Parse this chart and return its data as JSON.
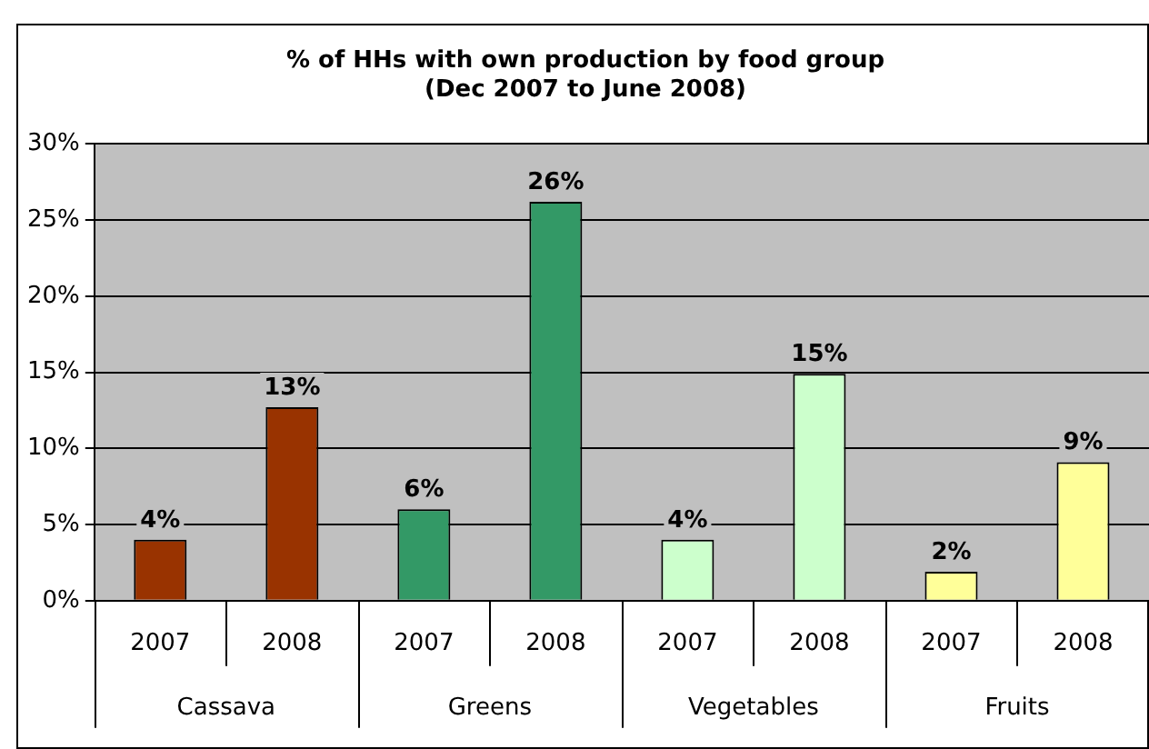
{
  "chart_data": {
    "type": "bar",
    "title": "% of HHs with own production by food group\n(Dec 2007 to June 2008)",
    "categories": [
      "2007",
      "2008",
      "2007",
      "2008",
      "2007",
      "2008",
      "2007",
      "2008"
    ],
    "values": [
      4.0,
      12.7,
      6.0,
      26.2,
      4.0,
      14.9,
      1.9,
      9.1
    ],
    "colors": [
      "#993300",
      "#993300",
      "#339966",
      "#339966",
      "#ccffcc",
      "#ccffcc",
      "#ffff99",
      "#ffff99"
    ],
    "value_labels": [
      "4%",
      "13%",
      "6%",
      "26%",
      "4%",
      "15%",
      "2%",
      "9%"
    ],
    "annotations": [
      "Cassava",
      "Greens",
      "Vegetables",
      "Fruits"
    ],
    "ylim": [
      0,
      30
    ],
    "yticks": [
      {
        "value": 0,
        "label": "0%"
      },
      {
        "value": 5,
        "label": "5%"
      },
      {
        "value": 10,
        "label": "10%"
      },
      {
        "value": 15,
        "label": "15%"
      },
      {
        "value": 20,
        "label": "20%"
      },
      {
        "value": 25,
        "label": "25%"
      },
      {
        "value": 30,
        "label": "30%"
      }
    ],
    "grid": "y",
    "legend": false
  }
}
